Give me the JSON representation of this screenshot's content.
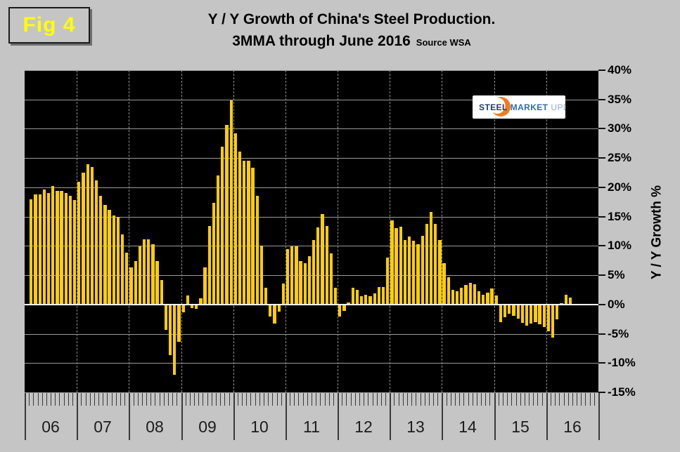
{
  "figure_label": "Fig 4",
  "title": {
    "line1": "Y / Y Growth of China's Steel Production.",
    "line2": "3MMA through June 2016",
    "source": "Source WSA"
  },
  "logo": {
    "word1": "STEEL",
    "word2": "MARKET",
    "word3": "UPDATE"
  },
  "y_axis": {
    "title": "Y / Y Growth %",
    "max": 40,
    "min": -15,
    "step": 5,
    "tick_labels": [
      "40%",
      "35%",
      "30%",
      "25%",
      "20%",
      "15%",
      "10%",
      "5%",
      "0%",
      "-5%",
      "-10%",
      "-15%"
    ]
  },
  "x_axis": {
    "year_labels": [
      "06",
      "07",
      "08",
      "09",
      "10",
      "11",
      "12",
      "13",
      "14",
      "15",
      "16"
    ]
  },
  "colors": {
    "bar": "#FFCE00",
    "plot_bg": "#000000",
    "page_bg": "#C5C5C5",
    "grid": "#9A9A9A",
    "zero_line": "#FFFFFF",
    "fig_label_text": "#FFFF00",
    "logo_orange": "#ED7D23",
    "logo_navy": "#1F3B73",
    "logo_blue": "#2F6DB5",
    "logo_light_blue": "#90A8CC"
  },
  "chart_data": {
    "type": "bar",
    "title": "Y / Y Growth of China's Steel Production. 3MMA through June 2016",
    "source": "WSA",
    "ylabel": "Y / Y Growth %",
    "ylim": [
      -15,
      40
    ],
    "grid": true,
    "frequency": "monthly",
    "start_month": "2006-01",
    "end_month": "2016-06",
    "unit": "percent y/y, 3-month moving average",
    "values": [
      null,
      17.9,
      18.8,
      18.8,
      19.6,
      19.0,
      20.2,
      19.4,
      19.4,
      19.0,
      18.5,
      17.8,
      21.0,
      22.5,
      23.9,
      23.5,
      21.2,
      18.5,
      17.0,
      16.2,
      15.2,
      15.0,
      12.0,
      8.8,
      6.3,
      7.4,
      9.9,
      11.1,
      11.1,
      10.3,
      7.4,
      4.2,
      -4.3,
      -8.7,
      -12.0,
      -6.4,
      -1.3,
      1.5,
      -0.6,
      -0.8,
      1.0,
      6.3,
      13.4,
      17.3,
      22.0,
      26.9,
      30.7,
      34.8,
      29.2,
      26.1,
      24.6,
      24.6,
      23.3,
      18.6,
      10.1,
      2.9,
      -2.0,
      -3.3,
      -1.2,
      3.6,
      9.4,
      9.9,
      9.9,
      7.4,
      7.1,
      8.2,
      11.0,
      13.2,
      15.4,
      13.4,
      8.7,
      2.9,
      -2.1,
      -1.1,
      0.3,
      2.9,
      2.5,
      1.4,
      1.7,
      1.4,
      1.9,
      3.0,
      3.0,
      8.0,
      14.4,
      13.0,
      13.3,
      11.0,
      11.6,
      10.9,
      10.3,
      11.7,
      13.7,
      15.8,
      13.7,
      11.0,
      7.1,
      4.6,
      2.5,
      2.2,
      2.9,
      3.3,
      3.7,
      3.5,
      2.3,
      1.7,
      2.0,
      2.7,
      1.5,
      -3.0,
      -2.2,
      -1.6,
      -1.9,
      -2.4,
      -3.1,
      -3.6,
      -3.3,
      -3.0,
      -3.4,
      -3.9,
      -4.6,
      -5.6,
      -2.5,
      0.2,
      1.6,
      1.2
    ]
  }
}
